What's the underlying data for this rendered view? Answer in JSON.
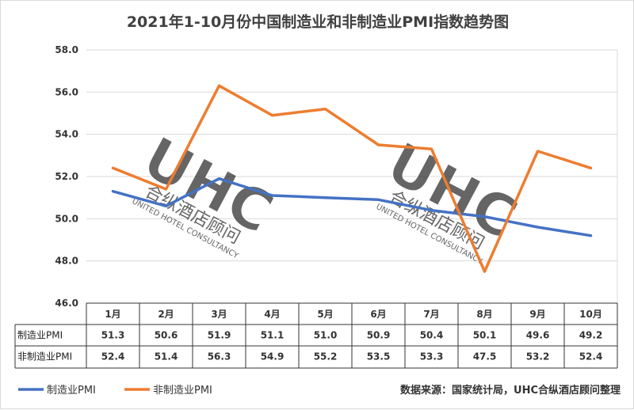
{
  "chart_data": {
    "type": "line",
    "title": "2021年1-10月份中国制造业和非制造业PMI指数趋势图",
    "categories": [
      "1月",
      "2月",
      "3月",
      "4月",
      "5月",
      "6月",
      "7月",
      "8月",
      "9月",
      "10月"
    ],
    "series": [
      {
        "name": "制造业PMI",
        "color": "#4472c4",
        "values": [
          51.3,
          50.6,
          51.9,
          51.1,
          51.0,
          50.9,
          50.4,
          50.1,
          49.6,
          49.2
        ]
      },
      {
        "name": "非制造业PMI",
        "color": "#ed7d31",
        "values": [
          52.4,
          51.4,
          56.3,
          54.9,
          55.2,
          53.5,
          53.3,
          47.5,
          53.2,
          52.4
        ]
      }
    ],
    "y_ticks": [
      "46.0",
      "48.0",
      "50.0",
      "52.0",
      "54.0",
      "56.0",
      "58.0"
    ],
    "ylim": [
      46,
      58
    ],
    "grid": true,
    "legend": "bottom-left",
    "table": {
      "row_labels": [
        "制造业PMI",
        "非制造业PMI"
      ],
      "rows": [
        [
          "51.3",
          "50.6",
          "51.9",
          "51.1",
          "51.0",
          "50.9",
          "50.4",
          "50.1",
          "49.6",
          "49.2"
        ],
        [
          "52.4",
          "51.4",
          "56.3",
          "54.9",
          "55.2",
          "53.5",
          "53.3",
          "47.5",
          "53.2",
          "52.4"
        ]
      ]
    }
  },
  "source_note": "数据来源：国家统计局，UHC合纵酒店顾问整理",
  "watermark": {
    "logo_text": "UHC",
    "cn_text": "合纵酒店顾问",
    "en_text": "UNITED HOTEL CONSULTANCY"
  }
}
